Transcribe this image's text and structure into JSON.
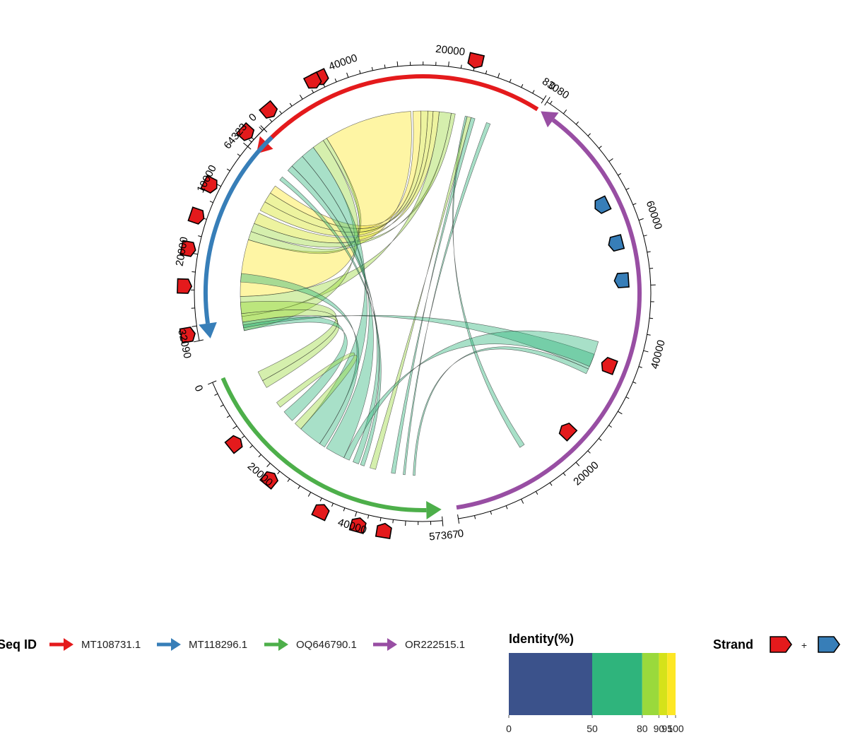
{
  "chart_data": {
    "type": "circos-synteny",
    "sequences": [
      {
        "id": "MT108731.1",
        "length": 64323,
        "color": "#E41A1C",
        "ticks": [
          "0",
          "20000",
          "40000",
          "64323"
        ]
      },
      {
        "id": "MT118296.1",
        "length": 32090,
        "color": "#377EB8",
        "ticks": [
          "0",
          "10000",
          "20000",
          "32090"
        ]
      },
      {
        "id": "OQ646790.1",
        "length": 57367,
        "color": "#4DAF4A",
        "ticks": [
          "0",
          "20000",
          "40000",
          "57367"
        ]
      },
      {
        "id": "OR222515.1",
        "length": 83080,
        "color": "#984EA3",
        "ticks": [
          "0",
          "20000",
          "40000",
          "60000",
          "83080"
        ]
      }
    ],
    "genes": [
      {
        "seq": "MT108731.1",
        "pos": 15000,
        "strand": "+"
      },
      {
        "seq": "MT108731.1",
        "pos": 45000,
        "strand": "+"
      },
      {
        "seq": "MT108731.1",
        "pos": 46500,
        "strand": "+"
      },
      {
        "seq": "MT108731.1",
        "pos": 56500,
        "strand": "+"
      },
      {
        "seq": "MT108731.1",
        "pos": 62500,
        "strand": "+"
      },
      {
        "seq": "MT118296.1",
        "pos": 10500,
        "strand": "+"
      },
      {
        "seq": "MT118296.1",
        "pos": 15000,
        "strand": "+"
      },
      {
        "seq": "MT118296.1",
        "pos": 19500,
        "strand": "+"
      },
      {
        "seq": "MT118296.1",
        "pos": 24500,
        "strand": "+"
      },
      {
        "seq": "MT118296.1",
        "pos": 31000,
        "strand": "+"
      },
      {
        "seq": "OQ646790.1",
        "pos": 12500,
        "strand": "+"
      },
      {
        "seq": "OQ646790.1",
        "pos": 22000,
        "strand": "+"
      },
      {
        "seq": "OQ646790.1",
        "pos": 33500,
        "strand": "+"
      },
      {
        "seq": "OQ646790.1",
        "pos": 41000,
        "strand": "+"
      },
      {
        "seq": "OQ646790.1",
        "pos": 46000,
        "strand": "+"
      },
      {
        "seq": "OR222515.1",
        "pos": 22500,
        "strand": "+"
      },
      {
        "seq": "OR222515.1",
        "pos": 36000,
        "strand": "+"
      },
      {
        "seq": "OR222515.1",
        "pos": 51000,
        "strand": "-"
      },
      {
        "seq": "OR222515.1",
        "pos": 57500,
        "strand": "-"
      },
      {
        "seq": "OR222515.1",
        "pos": 64500,
        "strand": "-"
      }
    ],
    "links": [
      {
        "s1": "MT108731.1",
        "a": [
          28000,
          50000
        ],
        "s2": "MT118296.1",
        "b": [
          16000,
          26000
        ],
        "identity": 96
      },
      {
        "s1": "MT108731.1",
        "a": [
          18000,
          21000
        ],
        "s2": "MT118296.1",
        "b": [
          26000,
          29500
        ],
        "identity": 82
      },
      {
        "s1": "MT108731.1",
        "a": [
          21000,
          22500
        ],
        "s2": "MT118296.1",
        "b": [
          11000,
          13000
        ],
        "identity": 92
      },
      {
        "s1": "MT108731.1",
        "a": [
          22500,
          23800
        ],
        "s2": "MT118296.1",
        "b": [
          7000,
          8800
        ],
        "identity": 93
      },
      {
        "s1": "MT108731.1",
        "a": [
          23800,
          25500
        ],
        "s2": "MT118296.1",
        "b": [
          8800,
          10500
        ],
        "identity": 90
      },
      {
        "s1": "MT108731.1",
        "a": [
          25500,
          27500
        ],
        "s2": "MT118296.1",
        "b": [
          5500,
          7000
        ],
        "identity": 95
      },
      {
        "s1": "MT108731.1",
        "a": [
          17000,
          18000
        ],
        "s2": "MT118296.1",
        "b": [
          13000,
          14500
        ],
        "identity": 84
      },
      {
        "s1": "MT108731.1",
        "a": [
          51000,
          54000
        ],
        "s2": "MT118296.1",
        "b": [
          29500,
          32000
        ],
        "identity": 80
      },
      {
        "s1": "MT108731.1",
        "a": [
          50000,
          51000
        ],
        "s2": "MT118296.1",
        "b": [
          14500,
          16000
        ],
        "identity": 85
      },
      {
        "s1": "MT108731.1",
        "a": [
          54000,
          57500
        ],
        "s2": "OQ646790.1",
        "b": [
          20000,
          26000
        ],
        "identity": 72
      },
      {
        "s1": "MT108731.1",
        "a": [
          57500,
          61000
        ],
        "s2": "OQ646790.1",
        "b": [
          28000,
          33000
        ],
        "identity": 78
      },
      {
        "s1": "MT108731.1",
        "a": [
          61000,
          62500
        ],
        "s2": "OQ646790.1",
        "b": [
          35500,
          37000
        ],
        "identity": 70
      },
      {
        "s1": "MT108731.1",
        "a": [
          12000,
          13000
        ],
        "s2": "OQ646790.1",
        "b": [
          45500,
          46500
        ],
        "identity": 68
      },
      {
        "s1": "MT108731.1",
        "a": [
          8000,
          9000
        ],
        "s2": "OQ646790.1",
        "b": [
          48500,
          49000
        ],
        "identity": 72
      },
      {
        "s1": "MT108731.1",
        "a": [
          14000,
          14500
        ],
        "s2": "OR222515.1",
        "b": [
          14000,
          15000
        ],
        "identity": 70
      },
      {
        "s1": "MT108731.1",
        "a": [
          13000,
          14000
        ],
        "s2": "OQ646790.1",
        "b": [
          40000,
          41500
        ],
        "identity": 88
      },
      {
        "s1": "MT118296.1",
        "a": [
          27000,
          29000
        ],
        "s2": "OQ646790.1",
        "b": [
          2000,
          4500
        ],
        "identity": 86
      },
      {
        "s1": "MT118296.1",
        "a": [
          29000,
          30500
        ],
        "s2": "OQ646790.1",
        "b": [
          4500,
          6500
        ],
        "identity": 88
      },
      {
        "s1": "MT118296.1",
        "a": [
          30500,
          32000
        ],
        "s2": "OQ646790.1",
        "b": [
          14000,
          17000
        ],
        "identity": 76
      },
      {
        "s1": "MT118296.1",
        "a": [
          22000,
          23500
        ],
        "s2": "OQ646790.1",
        "b": [
          26000,
          27500
        ],
        "identity": 74
      },
      {
        "s1": "MT118296.1",
        "a": [
          3500,
          4200
        ],
        "s2": "OQ646790.1",
        "b": [
          37500,
          38500
        ],
        "identity": 70
      },
      {
        "s1": "MT118296.1",
        "a": [
          31000,
          31500
        ],
        "s2": "OR222515.1",
        "b": [
          34000,
          37000
        ],
        "identity": 76
      },
      {
        "s1": "OQ646790.1",
        "a": [
          33000,
          34500
        ],
        "s2": "OR222515.1",
        "b": [
          34500,
          39500
        ],
        "identity": 72
      },
      {
        "s1": "OQ646790.1",
        "a": [
          11000,
          12500
        ],
        "s2": "OQ646790.1",
        "b": [
          18000,
          20000
        ],
        "identity": 88
      },
      {
        "s1": "OQ646790.1",
        "a": [
          51000,
          51500
        ],
        "s2": "OR222515.1",
        "b": [
          33000,
          34000
        ],
        "identity": 70
      }
    ],
    "identity_scale": {
      "title": "Identity(%)",
      "breaks": [
        "0",
        "50",
        "80",
        "90",
        "95",
        "100"
      ],
      "stops": [
        0,
        50,
        80,
        90,
        95,
        100
      ],
      "colors": [
        "#3B528B",
        "#2FB47C",
        "#9AD93C",
        "#D5E21A",
        "#FDE725"
      ]
    }
  },
  "legend": {
    "seqid_title": "Seq ID",
    "items": [
      {
        "label": "MT108731.1",
        "color": "#E41A1C"
      },
      {
        "label": "MT118296.1",
        "color": "#377EB8"
      },
      {
        "label": "OQ646790.1",
        "color": "#4DAF4A"
      },
      {
        "label": "OR222515.1",
        "color": "#984EA3"
      }
    ],
    "strand_title": "Strand",
    "strand_sep": "+",
    "strand_colors": [
      "#E41A1C",
      "#377EB8"
    ]
  }
}
